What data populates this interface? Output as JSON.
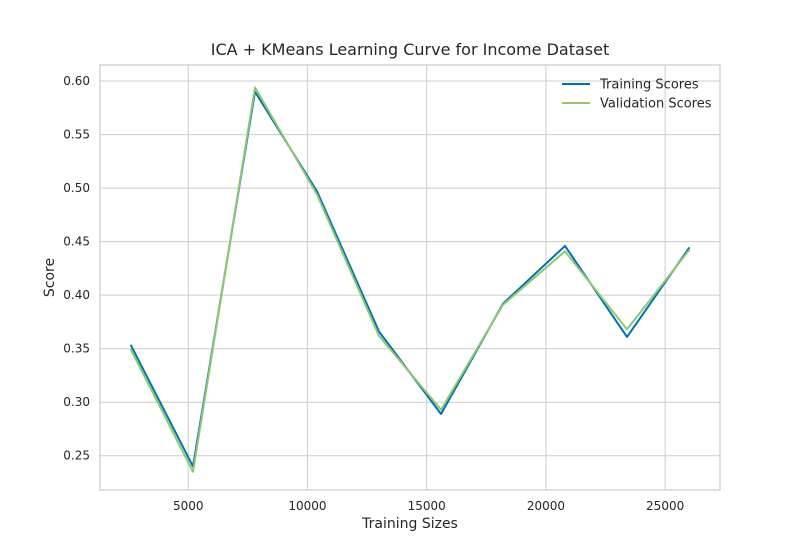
{
  "chart_data": {
    "type": "line",
    "title": "ICA + KMeans Learning Curve for Income Dataset",
    "xlabel": "Training Sizes",
    "ylabel": "Score",
    "xlim": [
      1300,
      27300
    ],
    "ylim": [
      0.218,
      0.615
    ],
    "xticks": [
      5000,
      10000,
      15000,
      20000,
      25000
    ],
    "xtick_labels": [
      "5000",
      "10000",
      "15000",
      "20000",
      "25000"
    ],
    "yticks": [
      0.25,
      0.3,
      0.35,
      0.4,
      0.45,
      0.5,
      0.55,
      0.6
    ],
    "ytick_labels": [
      "0.25",
      "0.30",
      "0.35",
      "0.40",
      "0.45",
      "0.50",
      "0.55",
      "0.60"
    ],
    "grid": true,
    "legend_position": "top-right",
    "x": [
      2600,
      5200,
      7800,
      10400,
      13000,
      15600,
      18200,
      20800,
      23400,
      26000
    ],
    "series": [
      {
        "name": "Training Scores",
        "color": "#0072B2",
        "values": [
          0.353,
          0.24,
          0.59,
          0.497,
          0.366,
          0.289,
          0.392,
          0.446,
          0.361,
          0.444
        ]
      },
      {
        "name": "Validation Scores",
        "color": "#8ec86d",
        "values": [
          0.349,
          0.235,
          0.594,
          0.494,
          0.362,
          0.293,
          0.391,
          0.441,
          0.368,
          0.442
        ]
      }
    ]
  }
}
